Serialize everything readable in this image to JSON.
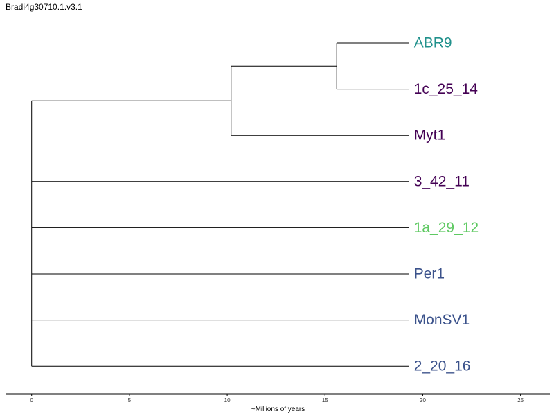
{
  "title": "Bradi4g30710.1.v3.1",
  "axis": {
    "label": "~Millions of years",
    "ticks": [
      0,
      5,
      10,
      15,
      20,
      25
    ],
    "range": [
      -1.3,
      26.5
    ]
  },
  "tree": {
    "tip_depth": 19.3,
    "tips": [
      {
        "name": "ABR9",
        "color": "#21918c"
      },
      {
        "name": "1c_25_14",
        "color": "#440154"
      },
      {
        "name": "Myt1",
        "color": "#440154"
      },
      {
        "name": "3_42_11",
        "color": "#440154"
      },
      {
        "name": "1a_29_12",
        "color": "#5ec962"
      },
      {
        "name": "Per1",
        "color": "#3b528b"
      },
      {
        "name": "MonSV1",
        "color": "#3b528b"
      },
      {
        "name": "2_20_16",
        "color": "#3b528b"
      }
    ],
    "nodes": [
      {
        "id": "n_abr9_1c",
        "depth": 15.6,
        "children": [
          "ABR9",
          "1c_25_14"
        ]
      },
      {
        "id": "n_myt",
        "depth": 10.2,
        "children": [
          "n_abr9_1c",
          "Myt1"
        ]
      },
      {
        "id": "root",
        "depth": 0,
        "children": [
          "n_myt",
          "3_42_11",
          "1a_29_12",
          "Per1",
          "MonSV1",
          "2_20_16"
        ]
      }
    ]
  }
}
